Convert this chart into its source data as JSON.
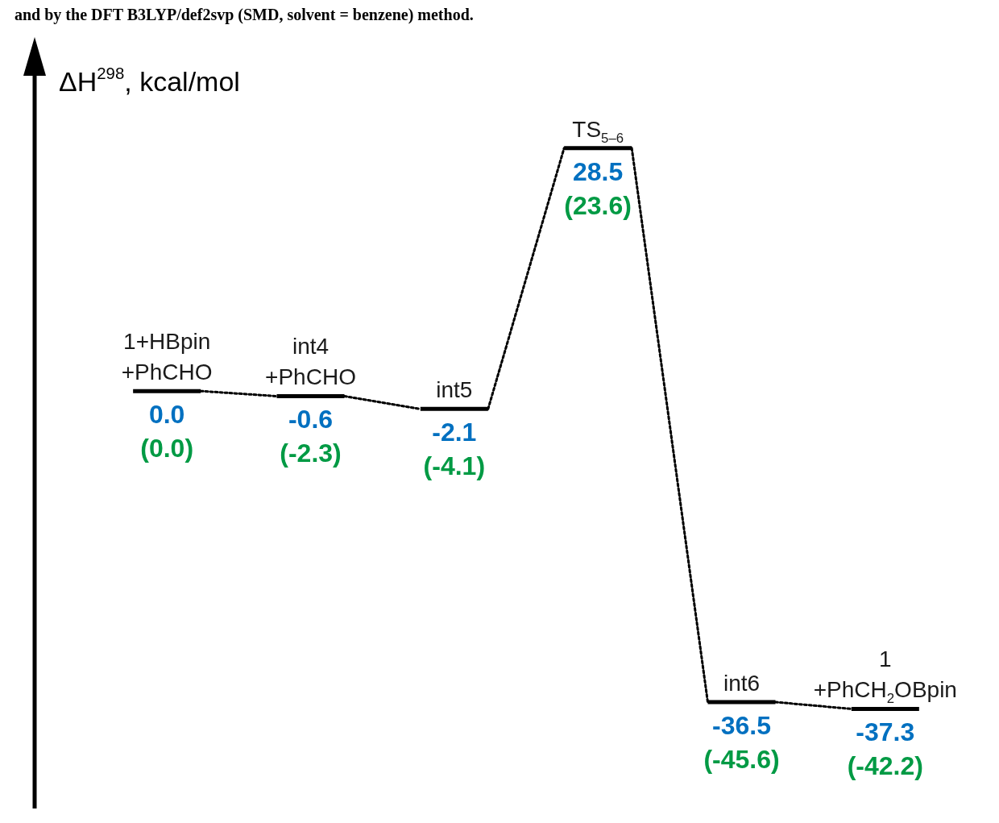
{
  "chart_data": {
    "type": "other",
    "ylabel": "ΔH$^{298}$, kcal/mol",
    "annotations": [
      "and by the DFT B3LYP/def2svp (SMD, solvent = benzene) method."
    ],
    "categories": [
      "1+HBpin +PhCHO",
      "int4 +PhCHO",
      "int5",
      "TS$_{5–6}$",
      "int6",
      "1 +PhCH$_{2}$OBpin"
    ],
    "series": [
      {
        "color": "#0070c0",
        "values": [
          0.0,
          -0.6,
          -2.1,
          28.5,
          -36.5,
          -37.3
        ],
        "value_labels": [
          "0.0",
          "-0.6",
          "-2.1",
          "28.5",
          "-36.5",
          "-37.3"
        ]
      },
      {
        "color": "#009a44",
        "values": [
          0.0,
          -2.3,
          -4.1,
          23.6,
          -45.6,
          -42.2
        ],
        "value_labels": [
          "(0.0)",
          "(-2.3)",
          "(-4.1)",
          "(23.6)",
          "(-45.6)",
          "(-42.2)"
        ]
      }
    ],
    "data_labels": true
  }
}
